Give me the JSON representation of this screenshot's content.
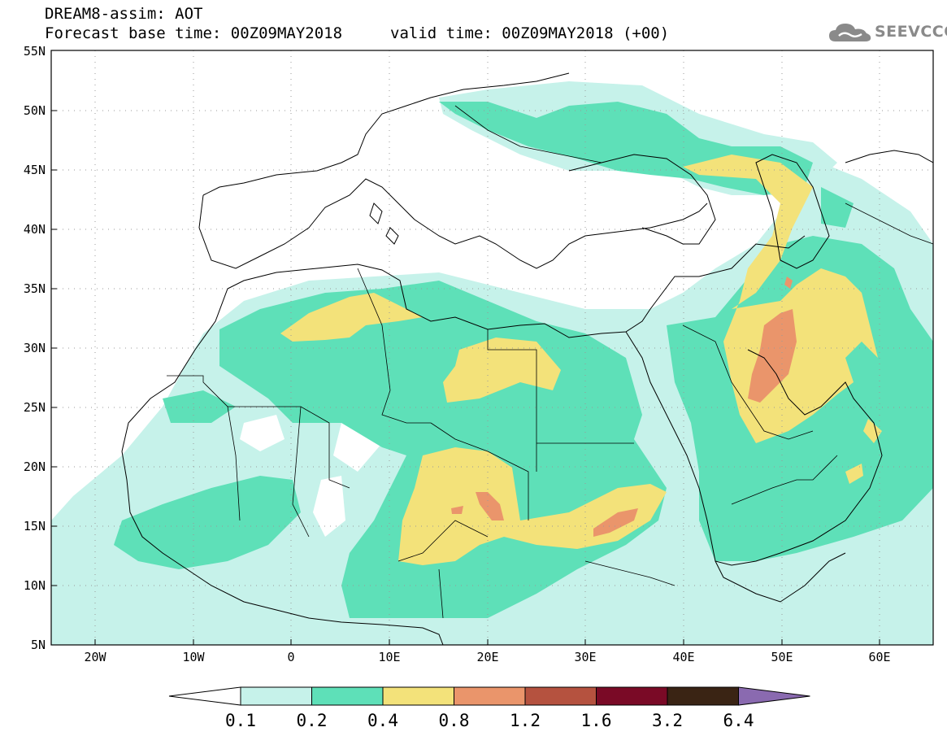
{
  "title": {
    "line1": "DREAM8-assim: AOT",
    "line2": "Forecast base time: 00Z09MAY2018",
    "valid": "valid time: 00Z09MAY2018 (+00)"
  },
  "logo": {
    "text": "SEEVCCC",
    "icon": "cloud-icon"
  },
  "map": {
    "lon_range": [
      -25,
      65
    ],
    "lat_range": [
      5,
      55
    ],
    "lat_labels": [
      "55N",
      "50N",
      "45N",
      "40N",
      "35N",
      "30N",
      "25N",
      "20N",
      "15N",
      "10N",
      "5N"
    ],
    "lon_labels": [
      "20W",
      "10W",
      "0",
      "10E",
      "20E",
      "30E",
      "40E",
      "50E",
      "60E"
    ]
  },
  "colorbar": {
    "labels": [
      "0.1",
      "0.2",
      "0.4",
      "0.8",
      "1.2",
      "1.6",
      "3.2",
      "6.4"
    ],
    "colors": [
      "#c6f2ea",
      "#5ee0b8",
      "#f3e27a",
      "#ea956b",
      "#b5523f",
      "#7a0a26",
      "#3a2414",
      "#8a6ab0"
    ],
    "under_color": "#ffffff"
  }
}
